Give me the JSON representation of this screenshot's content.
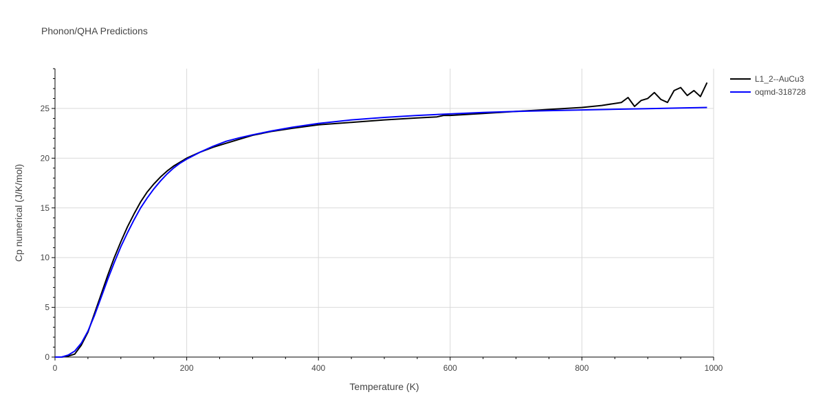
{
  "chart_data": {
    "type": "line",
    "title": "Phonon/QHA Predictions",
    "xlabel": "Temperature (K)",
    "ylabel": "Cp numerical (J/K/mol)",
    "xlim": [
      0,
      1000
    ],
    "ylim": [
      0,
      29
    ],
    "xticks": [
      0,
      200,
      400,
      600,
      800,
      1000
    ],
    "xtick_labels": [
      "0",
      "200",
      "400",
      "600",
      "800",
      "1000"
    ],
    "yticks": [
      0,
      5,
      10,
      15,
      20,
      25
    ],
    "ytick_labels": [
      "0",
      "5",
      "10",
      "15",
      "20",
      "25"
    ],
    "grid": true,
    "legend_position": "top-right",
    "series": [
      {
        "name": "L1_2--AuCu3",
        "color": "#000000",
        "x": [
          0,
          10,
          20,
          30,
          40,
          50,
          60,
          70,
          80,
          90,
          100,
          110,
          120,
          130,
          140,
          150,
          160,
          170,
          180,
          190,
          200,
          220,
          240,
          260,
          280,
          300,
          330,
          360,
          400,
          450,
          500,
          550,
          580,
          590,
          600,
          650,
          700,
          750,
          800,
          830,
          860,
          870,
          880,
          890,
          900,
          910,
          920,
          930,
          940,
          950,
          960,
          970,
          980,
          990
        ],
        "y": [
          0,
          0,
          0.1,
          0.3,
          1.2,
          2.5,
          4.4,
          6.3,
          8.2,
          10.0,
          11.6,
          13.1,
          14.4,
          15.6,
          16.6,
          17.4,
          18.1,
          18.7,
          19.2,
          19.6,
          20.0,
          20.6,
          21.1,
          21.5,
          21.9,
          22.3,
          22.7,
          23.0,
          23.35,
          23.6,
          23.85,
          24.05,
          24.15,
          24.3,
          24.3,
          24.5,
          24.7,
          24.9,
          25.1,
          25.3,
          25.6,
          26.1,
          25.2,
          25.8,
          26.0,
          26.6,
          25.9,
          25.6,
          26.8,
          27.1,
          26.3,
          26.8,
          26.2,
          27.6
        ]
      },
      {
        "name": "oqmd-318728",
        "color": "#0000ff",
        "x": [
          0,
          10,
          20,
          30,
          40,
          50,
          60,
          70,
          80,
          90,
          100,
          110,
          120,
          130,
          140,
          150,
          160,
          170,
          180,
          190,
          200,
          220,
          240,
          260,
          280,
          300,
          330,
          360,
          400,
          450,
          500,
          550,
          600,
          650,
          700,
          750,
          800,
          850,
          900,
          950,
          990
        ],
        "y": [
          0,
          0,
          0.2,
          0.6,
          1.4,
          2.6,
          4.2,
          6.0,
          7.8,
          9.5,
          11.1,
          12.5,
          13.8,
          15.0,
          16.0,
          16.9,
          17.7,
          18.4,
          19.0,
          19.5,
          19.9,
          20.6,
          21.2,
          21.7,
          22.05,
          22.35,
          22.75,
          23.1,
          23.5,
          23.85,
          24.1,
          24.3,
          24.45,
          24.6,
          24.7,
          24.78,
          24.85,
          24.92,
          24.98,
          25.05,
          25.1
        ]
      }
    ]
  }
}
